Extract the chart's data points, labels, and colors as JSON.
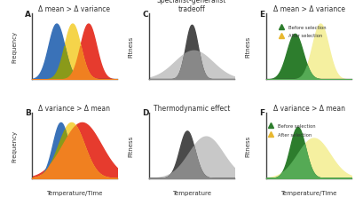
{
  "panel_labels": [
    "A",
    "B",
    "C",
    "D",
    "E",
    "F"
  ],
  "panel_titles": {
    "A": "Δ mean > Δ variance",
    "B": "Δ variance > Δ mean",
    "C": "Specialist-generalist\ntradeoff",
    "D": "Thermodynamic effect",
    "E": "Δ mean > Δ variance",
    "F": "Δ variance > Δ mean"
  },
  "ylabel_freq": "Frequency",
  "ylabel_fit": "Fitness",
  "xlabel_temptime": "Temperature/Time",
  "xlabel_temp": "Temperature",
  "colors": {
    "blue": "#3a72b8",
    "yellow": "#f5d44a",
    "red": "#e63b2e",
    "olive": "#8a9a1a",
    "orange": "#f08020",
    "dark_gray": "#4a4a4a",
    "mid_gray": "#888888",
    "light_gray": "#c8c8c8",
    "green_dark": "#2d7d2d",
    "green_mid": "#55aa55",
    "yellow_pale": "#f5f0a0",
    "yellow_golden": "#e8b830"
  },
  "background": "#ffffff"
}
